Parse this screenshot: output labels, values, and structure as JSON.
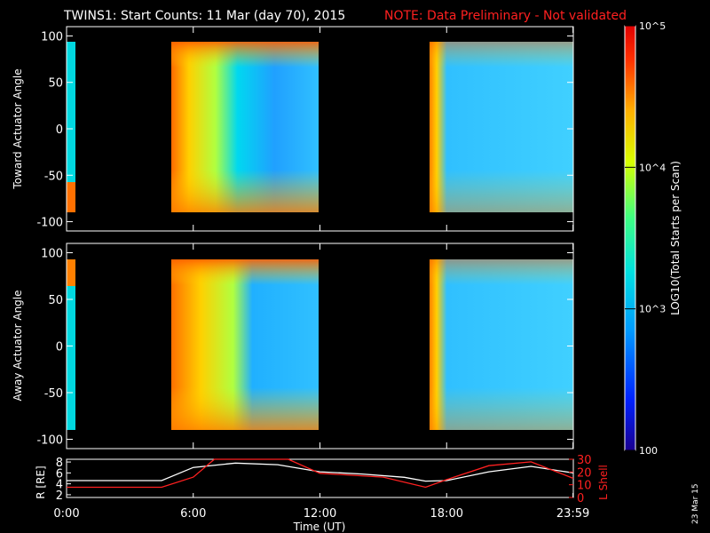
{
  "title": {
    "main": "TWINS1: Start Counts: 11 Mar (day  70), 2015",
    "note": "NOTE: Data Preliminary - Not validated"
  },
  "colors": {
    "accent_note": "#ff2020",
    "background": "#000000"
  },
  "colorbar": {
    "label": "LOG10(Total Starts per Scan)",
    "tick_labels": [
      "10^5",
      "10^4",
      "10^3",
      "100"
    ],
    "range": [
      100,
      100000
    ],
    "scale": "log"
  },
  "date_stamp": "23 Mar 15",
  "chart_data": [
    {
      "type": "heatmap",
      "ylabel": "Toward Actuator Angle",
      "ylim": [
        -110,
        110
      ],
      "yticks": [
        "100",
        "50",
        "0",
        "-50",
        "-100"
      ],
      "xticks": [
        "0:00",
        "6:00",
        "12:00",
        "18:00",
        "23:59"
      ],
      "data_segments": [
        {
          "start": "00:00",
          "end": "00:10"
        },
        {
          "start": "04:50",
          "end": "11:50"
        },
        {
          "start": "17:00",
          "end": "23:59"
        }
      ]
    },
    {
      "type": "heatmap",
      "ylabel": "Away Actuator Angle",
      "ylim": [
        -110,
        110
      ],
      "yticks": [
        "100",
        "50",
        "0",
        "-50",
        "-100"
      ],
      "xticks": [
        "0:00",
        "6:00",
        "12:00",
        "18:00",
        "23:59"
      ],
      "data_segments": [
        {
          "start": "00:00",
          "end": "00:10"
        },
        {
          "start": "04:50",
          "end": "11:50"
        },
        {
          "start": "17:00",
          "end": "23:59"
        }
      ]
    },
    {
      "type": "line",
      "xlabel": "Time (UT)",
      "xticks": [
        "0:00",
        "6:00",
        "12:00",
        "18:00",
        "23:59"
      ],
      "left_axis": {
        "label": "R [RE]",
        "ticks": [
          "8",
          "6",
          "4",
          "2"
        ],
        "range": [
          1.5,
          8.5
        ]
      },
      "right_axis": {
        "label": "L Shell",
        "ticks": [
          "30",
          "20",
          "10",
          "0"
        ],
        "range": [
          0,
          30
        ],
        "color": "#ff2020"
      },
      "series": [
        {
          "name": "R",
          "color": "#ffffff",
          "x": [
            0,
            2,
            4.5,
            6,
            8,
            10,
            12,
            14,
            16,
            17,
            18,
            20,
            22,
            24
          ],
          "y": [
            4.6,
            4.6,
            4.6,
            7.0,
            7.8,
            7.5,
            6.2,
            5.8,
            5.2,
            4.5,
            4.6,
            6.2,
            7.2,
            6.0
          ]
        },
        {
          "name": "L Shell",
          "color": "#ff2020",
          "x": [
            0,
            4.5,
            6,
            7,
            10.5,
            12,
            15,
            17,
            18,
            20,
            22,
            24
          ],
          "y": [
            8,
            8,
            16,
            30,
            30,
            19,
            16,
            8,
            14,
            25,
            28,
            15
          ]
        }
      ]
    }
  ]
}
